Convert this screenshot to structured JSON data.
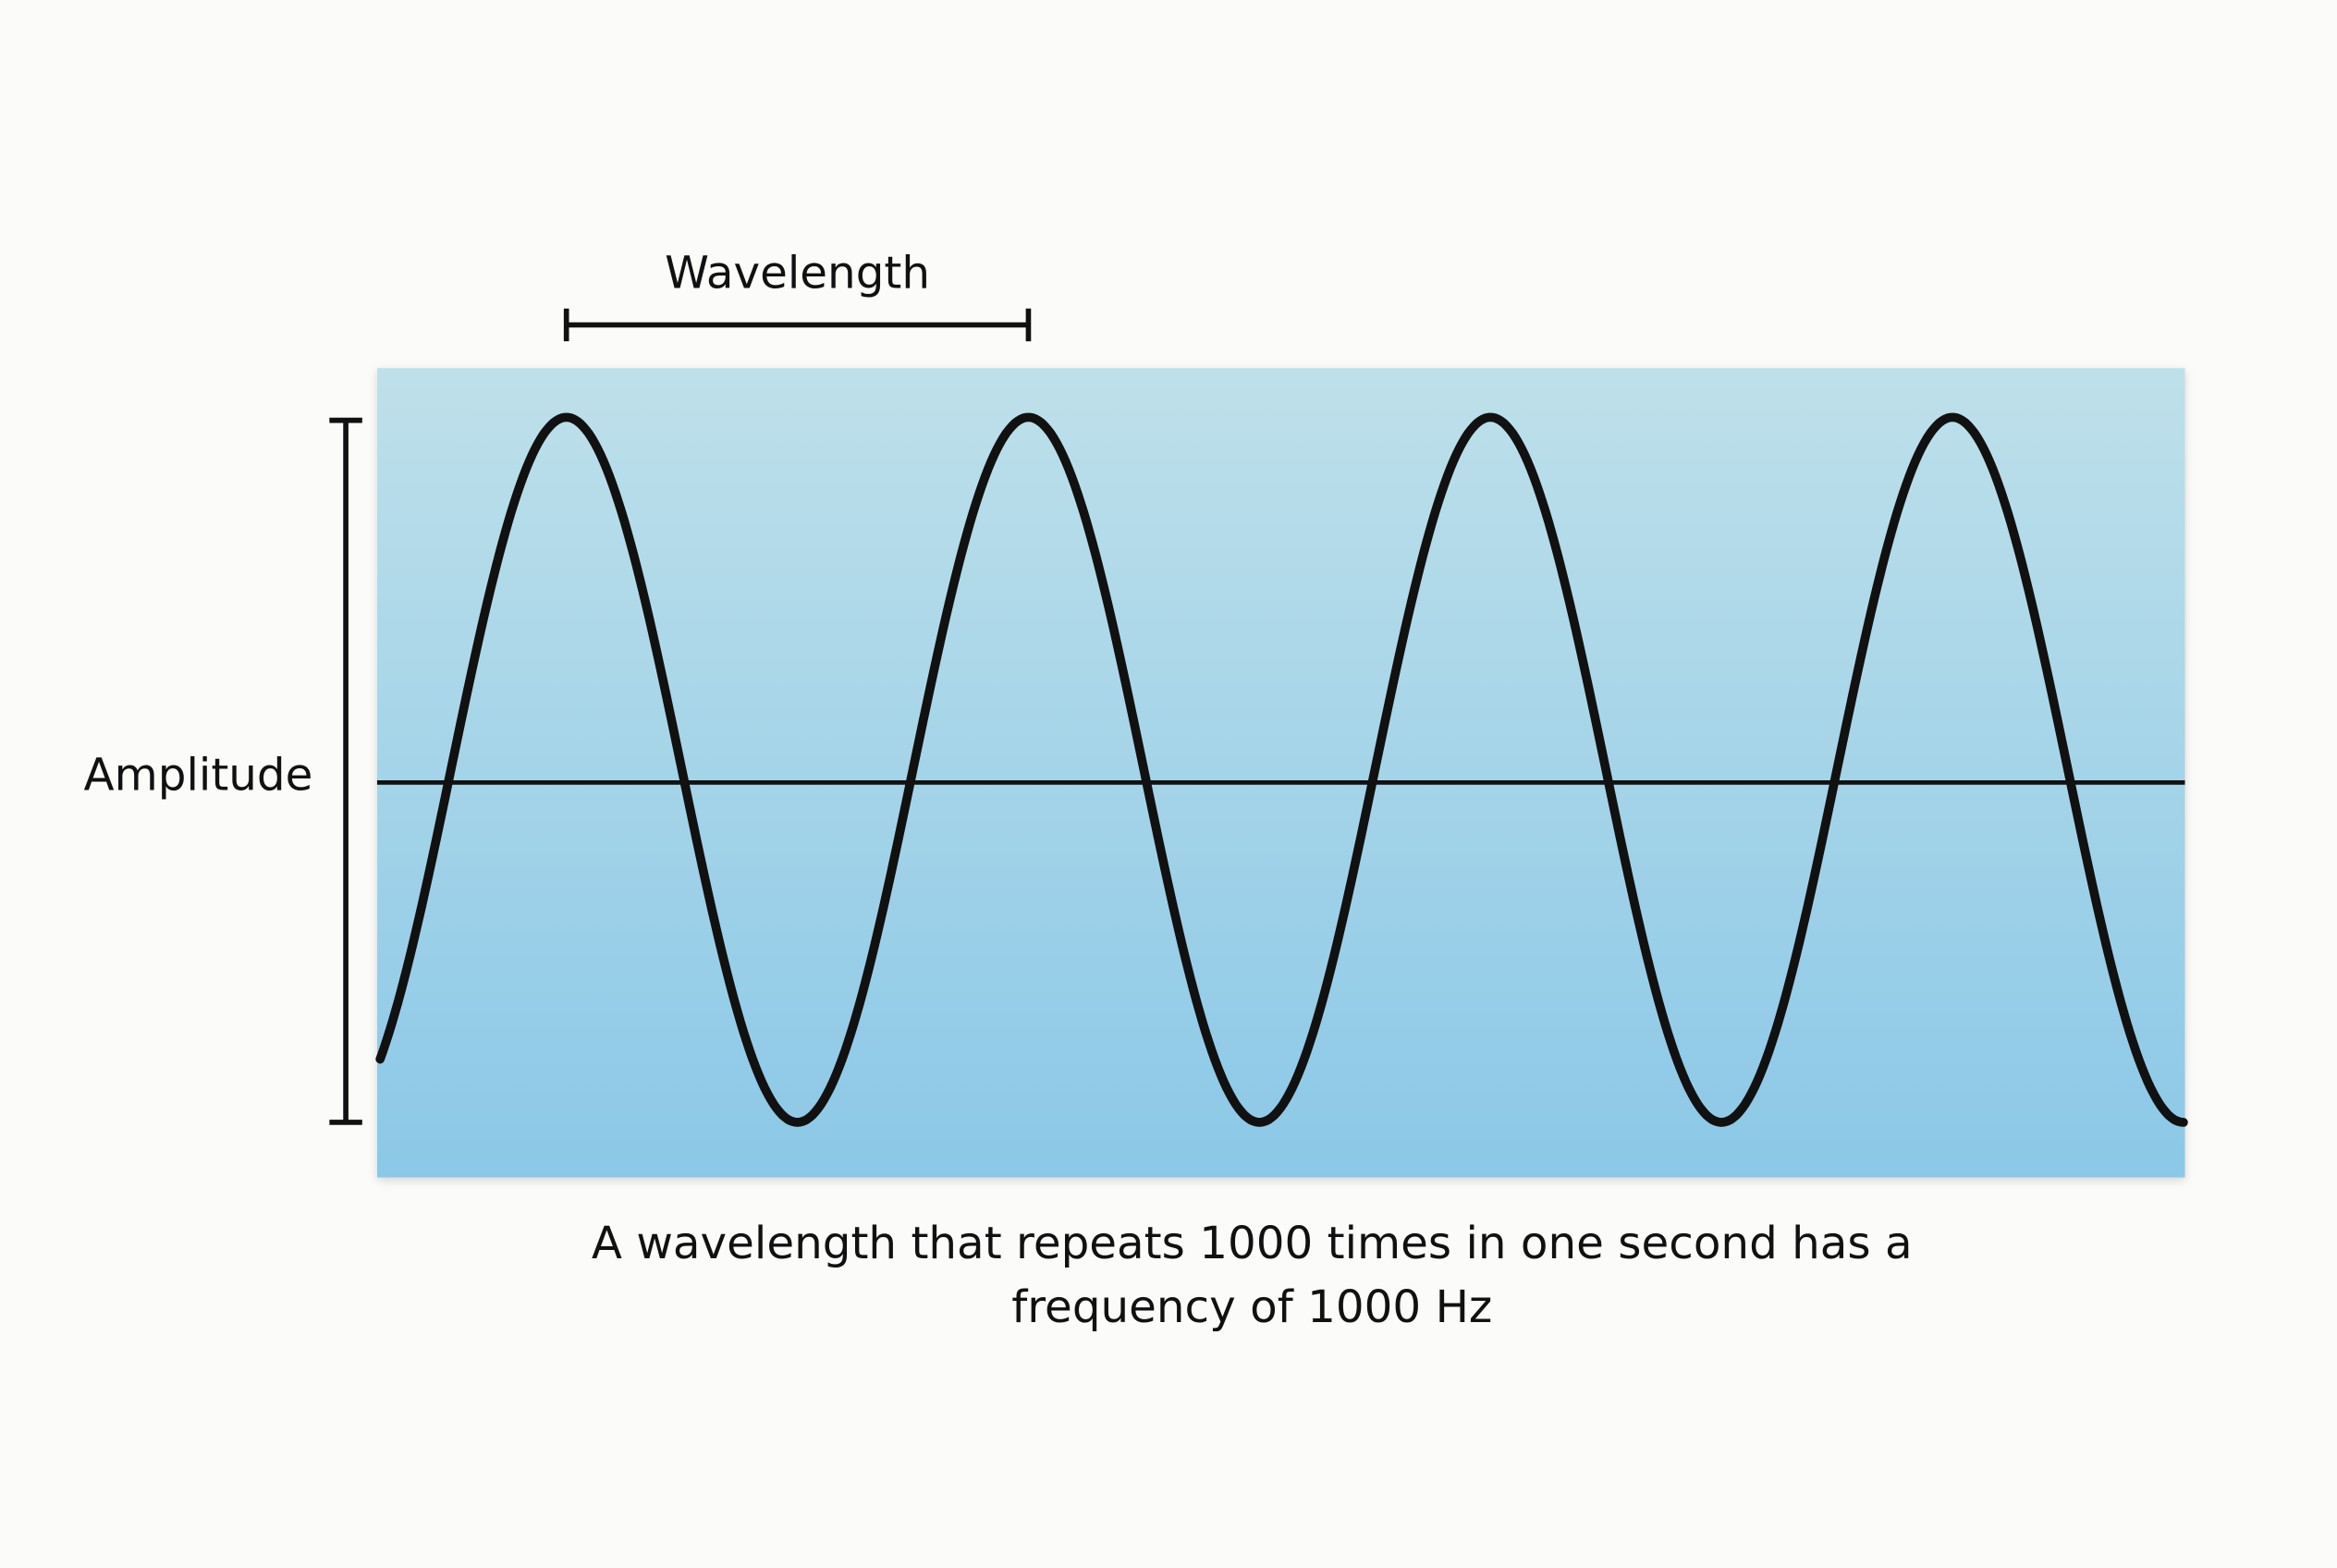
{
  "labels": {
    "wavelength": "Wavelength",
    "amplitude": "Amplitude"
  },
  "caption": {
    "lines": [
      "A wavelength that repeats 1000 times in one second has a",
      "frequency of 1000 Hz"
    ]
  }
}
